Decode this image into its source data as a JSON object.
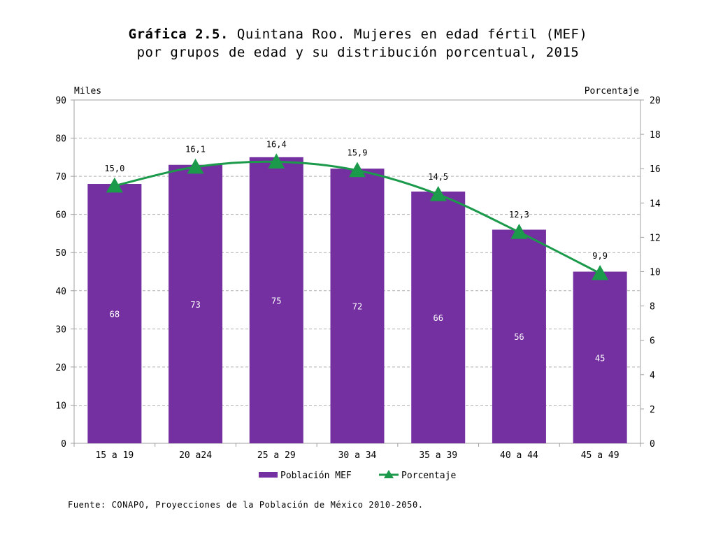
{
  "title": {
    "bold": "Gráfica 2.5.",
    "line1_rest": " Quintana Roo. Mujeres en edad fértil (MEF)",
    "line2": "por grupos de edad y su distribución porcentual, 2015"
  },
  "source": "Fuente: CONAPO, Proyecciones de la Población de México 2010-2050.",
  "colors": {
    "bar": "#7430a0",
    "line": "#1a9a4a",
    "grid": "#b0b0b0",
    "axis": "#a0a0a0"
  },
  "chart_data": {
    "type": "bar+line",
    "categories": [
      "15 a 19",
      "20 a24",
      "25 a 29",
      "30 a 34",
      "35 a 39",
      "40 a 44",
      "45 a 49"
    ],
    "series": [
      {
        "name": "Población MEF",
        "type": "bar",
        "axis": "left",
        "values": [
          68,
          73,
          75,
          72,
          66,
          56,
          45
        ],
        "labels": [
          "68",
          "73",
          "75",
          "72",
          "66",
          "56",
          "45"
        ]
      },
      {
        "name": "Porcentaje",
        "type": "line",
        "axis": "right",
        "values": [
          15.0,
          16.1,
          16.4,
          15.9,
          14.5,
          12.3,
          9.9
        ],
        "labels": [
          "15,0",
          "16,1",
          "16,4",
          "15,9",
          "14,5",
          "12,3",
          "9,9"
        ]
      }
    ],
    "ylabel_left": "Miles",
    "ylabel_right": "Porcentaje",
    "ylim_left": [
      0,
      90
    ],
    "ylim_right": [
      0,
      20
    ],
    "yticks_left": [
      0,
      10,
      20,
      30,
      40,
      50,
      60,
      70,
      80,
      90
    ],
    "yticks_right": [
      0,
      2,
      4,
      6,
      8,
      10,
      12,
      14,
      16,
      18,
      20
    ],
    "grid": true,
    "legend": "bottom-center"
  }
}
